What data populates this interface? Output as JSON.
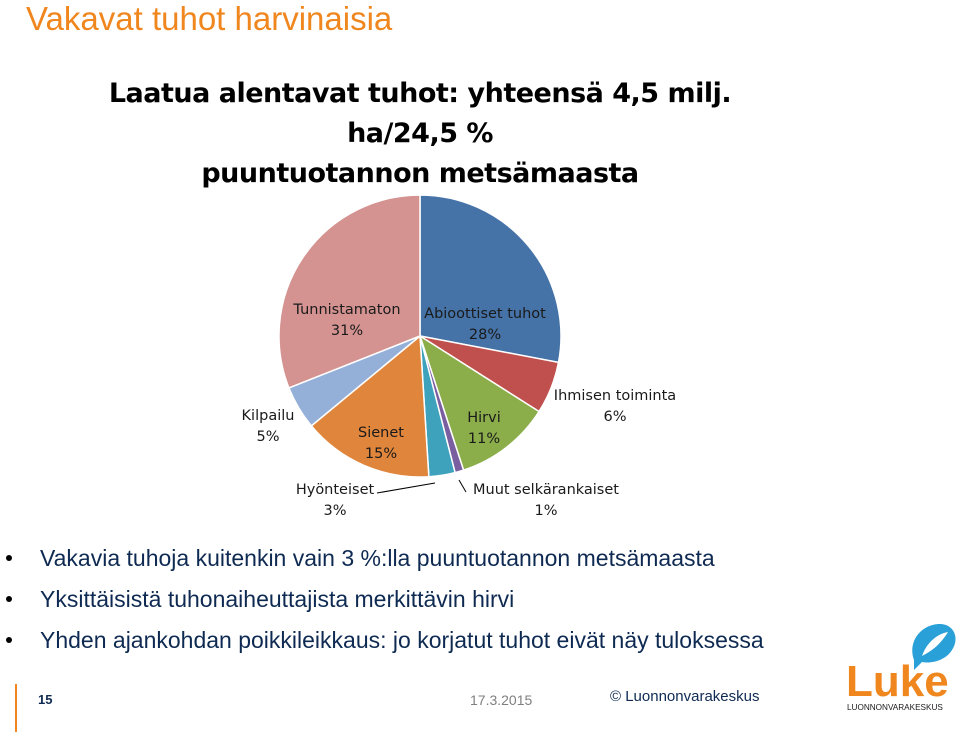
{
  "slide": {
    "title": "Vakavat tuhot harvinaisia",
    "bullets": [
      "Vakavia tuhoja kuitenkin vain 3 %:lla puuntuotannon metsämaasta",
      "Yksittäisistä tuhonaiheuttajista merkittävin hirvi",
      "Yhden ajankohdan poikkileikkaus: jo korjatut tuhot eivät näy tuloksessa"
    ],
    "page_number": "15",
    "date": "17.3.2015",
    "copyright": "© Luonnonvarakeskus",
    "logo": {
      "wordmark": "Luke",
      "subtitle": "LUONNONVARAKESKUS",
      "icon": "speech-bubble-leaf-icon"
    }
  },
  "chart_data": {
    "type": "pie",
    "title_lines": [
      "Laatua alentavat tuhot: yhteensä 4,5 milj. ha/24,5 %",
      "puuntuotannon metsämaasta"
    ],
    "start_angle_deg": 0,
    "direction": "clockwise",
    "slices": [
      {
        "name": "Abioottiset tuhot",
        "value": 28,
        "label": "28%",
        "color": "#4572a7"
      },
      {
        "name": "Ihmisen toiminta",
        "value": 6,
        "label": "6%",
        "color": "#c0504d"
      },
      {
        "name": "Hirvi",
        "value": 11,
        "label": "11%",
        "color": "#8bae4a"
      },
      {
        "name": "Muut selkärankaiset",
        "value": 1,
        "label": "1%",
        "color": "#7a5fa0"
      },
      {
        "name": "Hyönteiset",
        "value": 3,
        "label": "3%",
        "color": "#3fa2bd"
      },
      {
        "name": "Sienet",
        "value": 15,
        "label": "15%",
        "color": "#e0853c"
      },
      {
        "name": "Kilpailu",
        "value": 5,
        "label": "5%",
        "color": "#95b0d8"
      },
      {
        "name": "Tunnistamaton",
        "value": 31,
        "label": "31%",
        "color": "#d49391"
      }
    ]
  },
  "colors": {
    "accent": "#f0861e",
    "text": "#0e2a52"
  }
}
